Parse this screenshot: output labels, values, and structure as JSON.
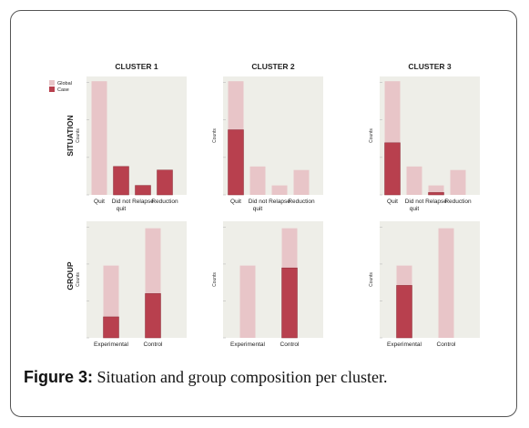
{
  "caption": {
    "label": "Figure 3:",
    "text": " Situation and group composition per cluster."
  },
  "row_labels": [
    "SITUATION",
    "GROUP"
  ],
  "legend": {
    "global": "Global",
    "case": "Case"
  },
  "colors": {
    "global": "#e8c5c8",
    "case": "#b8404e",
    "panel_bg": "#eeeee8"
  },
  "chart_data": [
    {
      "type": "bar",
      "title": "CLUSTER 1",
      "ylabel": "Counts",
      "categories": [
        "Quit",
        "Did not quit",
        "Relapse",
        "Reduction"
      ],
      "series": [
        {
          "name": "Global",
          "values": [
            96,
            24,
            8,
            21
          ]
        },
        {
          "name": "Case",
          "values": [
            0,
            24,
            8,
            21
          ]
        }
      ],
      "ylim": [
        0,
        100
      ]
    },
    {
      "type": "bar",
      "title": "CLUSTER 2",
      "ylabel": "Counts",
      "categories": [
        "Quit",
        "Did not quit",
        "Relapse",
        "Reduction"
      ],
      "series": [
        {
          "name": "Global",
          "values": [
            96,
            24,
            8,
            21
          ]
        },
        {
          "name": "Case",
          "values": [
            55,
            0,
            0,
            0
          ]
        }
      ],
      "ylim": [
        0,
        100
      ]
    },
    {
      "type": "bar",
      "title": "CLUSTER 3",
      "ylabel": "Counts",
      "categories": [
        "Quit",
        "Did not quit",
        "Relapse",
        "Reduction"
      ],
      "series": [
        {
          "name": "Global",
          "values": [
            96,
            24,
            8,
            21
          ]
        },
        {
          "name": "Case",
          "values": [
            44,
            0,
            2,
            0
          ]
        }
      ],
      "ylim": [
        0,
        100
      ]
    },
    {
      "type": "bar",
      "ylabel": "Counts",
      "categories": [
        "Experimental",
        "Control"
      ],
      "series": [
        {
          "name": "Global",
          "values": [
            62,
            94
          ]
        },
        {
          "name": "Case",
          "values": [
            18,
            38
          ]
        }
      ],
      "ylim": [
        0,
        100
      ]
    },
    {
      "type": "bar",
      "ylabel": "Counts",
      "categories": [
        "Experimental",
        "Control"
      ],
      "series": [
        {
          "name": "Global",
          "values": [
            62,
            94
          ]
        },
        {
          "name": "Case",
          "values": [
            0,
            60
          ]
        }
      ],
      "ylim": [
        0,
        100
      ]
    },
    {
      "type": "bar",
      "ylabel": "Counts",
      "categories": [
        "Experimental",
        "Control"
      ],
      "series": [
        {
          "name": "Global",
          "values": [
            62,
            94
          ]
        },
        {
          "name": "Case",
          "values": [
            45,
            0
          ]
        }
      ],
      "ylim": [
        0,
        100
      ]
    }
  ]
}
